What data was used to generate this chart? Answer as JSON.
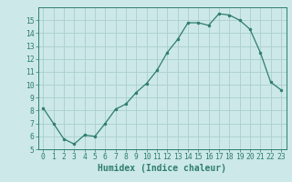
{
  "x": [
    0,
    1,
    2,
    3,
    4,
    5,
    6,
    7,
    8,
    9,
    10,
    11,
    12,
    13,
    14,
    15,
    16,
    17,
    18,
    19,
    20,
    21,
    22,
    23
  ],
  "y": [
    8.2,
    7.0,
    5.8,
    5.4,
    6.1,
    6.0,
    7.0,
    8.1,
    8.5,
    9.4,
    10.1,
    11.1,
    12.5,
    13.5,
    14.8,
    14.8,
    14.6,
    15.5,
    15.4,
    15.0,
    14.3,
    12.5,
    10.2,
    9.6
  ],
  "line_color": "#2e7d6e",
  "marker": "o",
  "marker_size": 2.0,
  "bg_color": "#cce8e8",
  "grid_color": "#aacece",
  "axis_color": "#2e7d6e",
  "xlabel": "Humidex (Indice chaleur)",
  "xlim": [
    -0.5,
    23.5
  ],
  "ylim": [
    5,
    16.0
  ],
  "yticks": [
    5,
    6,
    7,
    8,
    9,
    10,
    11,
    12,
    13,
    14,
    15
  ],
  "xticks": [
    0,
    1,
    2,
    3,
    4,
    5,
    6,
    7,
    8,
    9,
    10,
    11,
    12,
    13,
    14,
    15,
    16,
    17,
    18,
    19,
    20,
    21,
    22,
    23
  ],
  "tick_fontsize": 5.8,
  "label_fontsize": 7.0
}
